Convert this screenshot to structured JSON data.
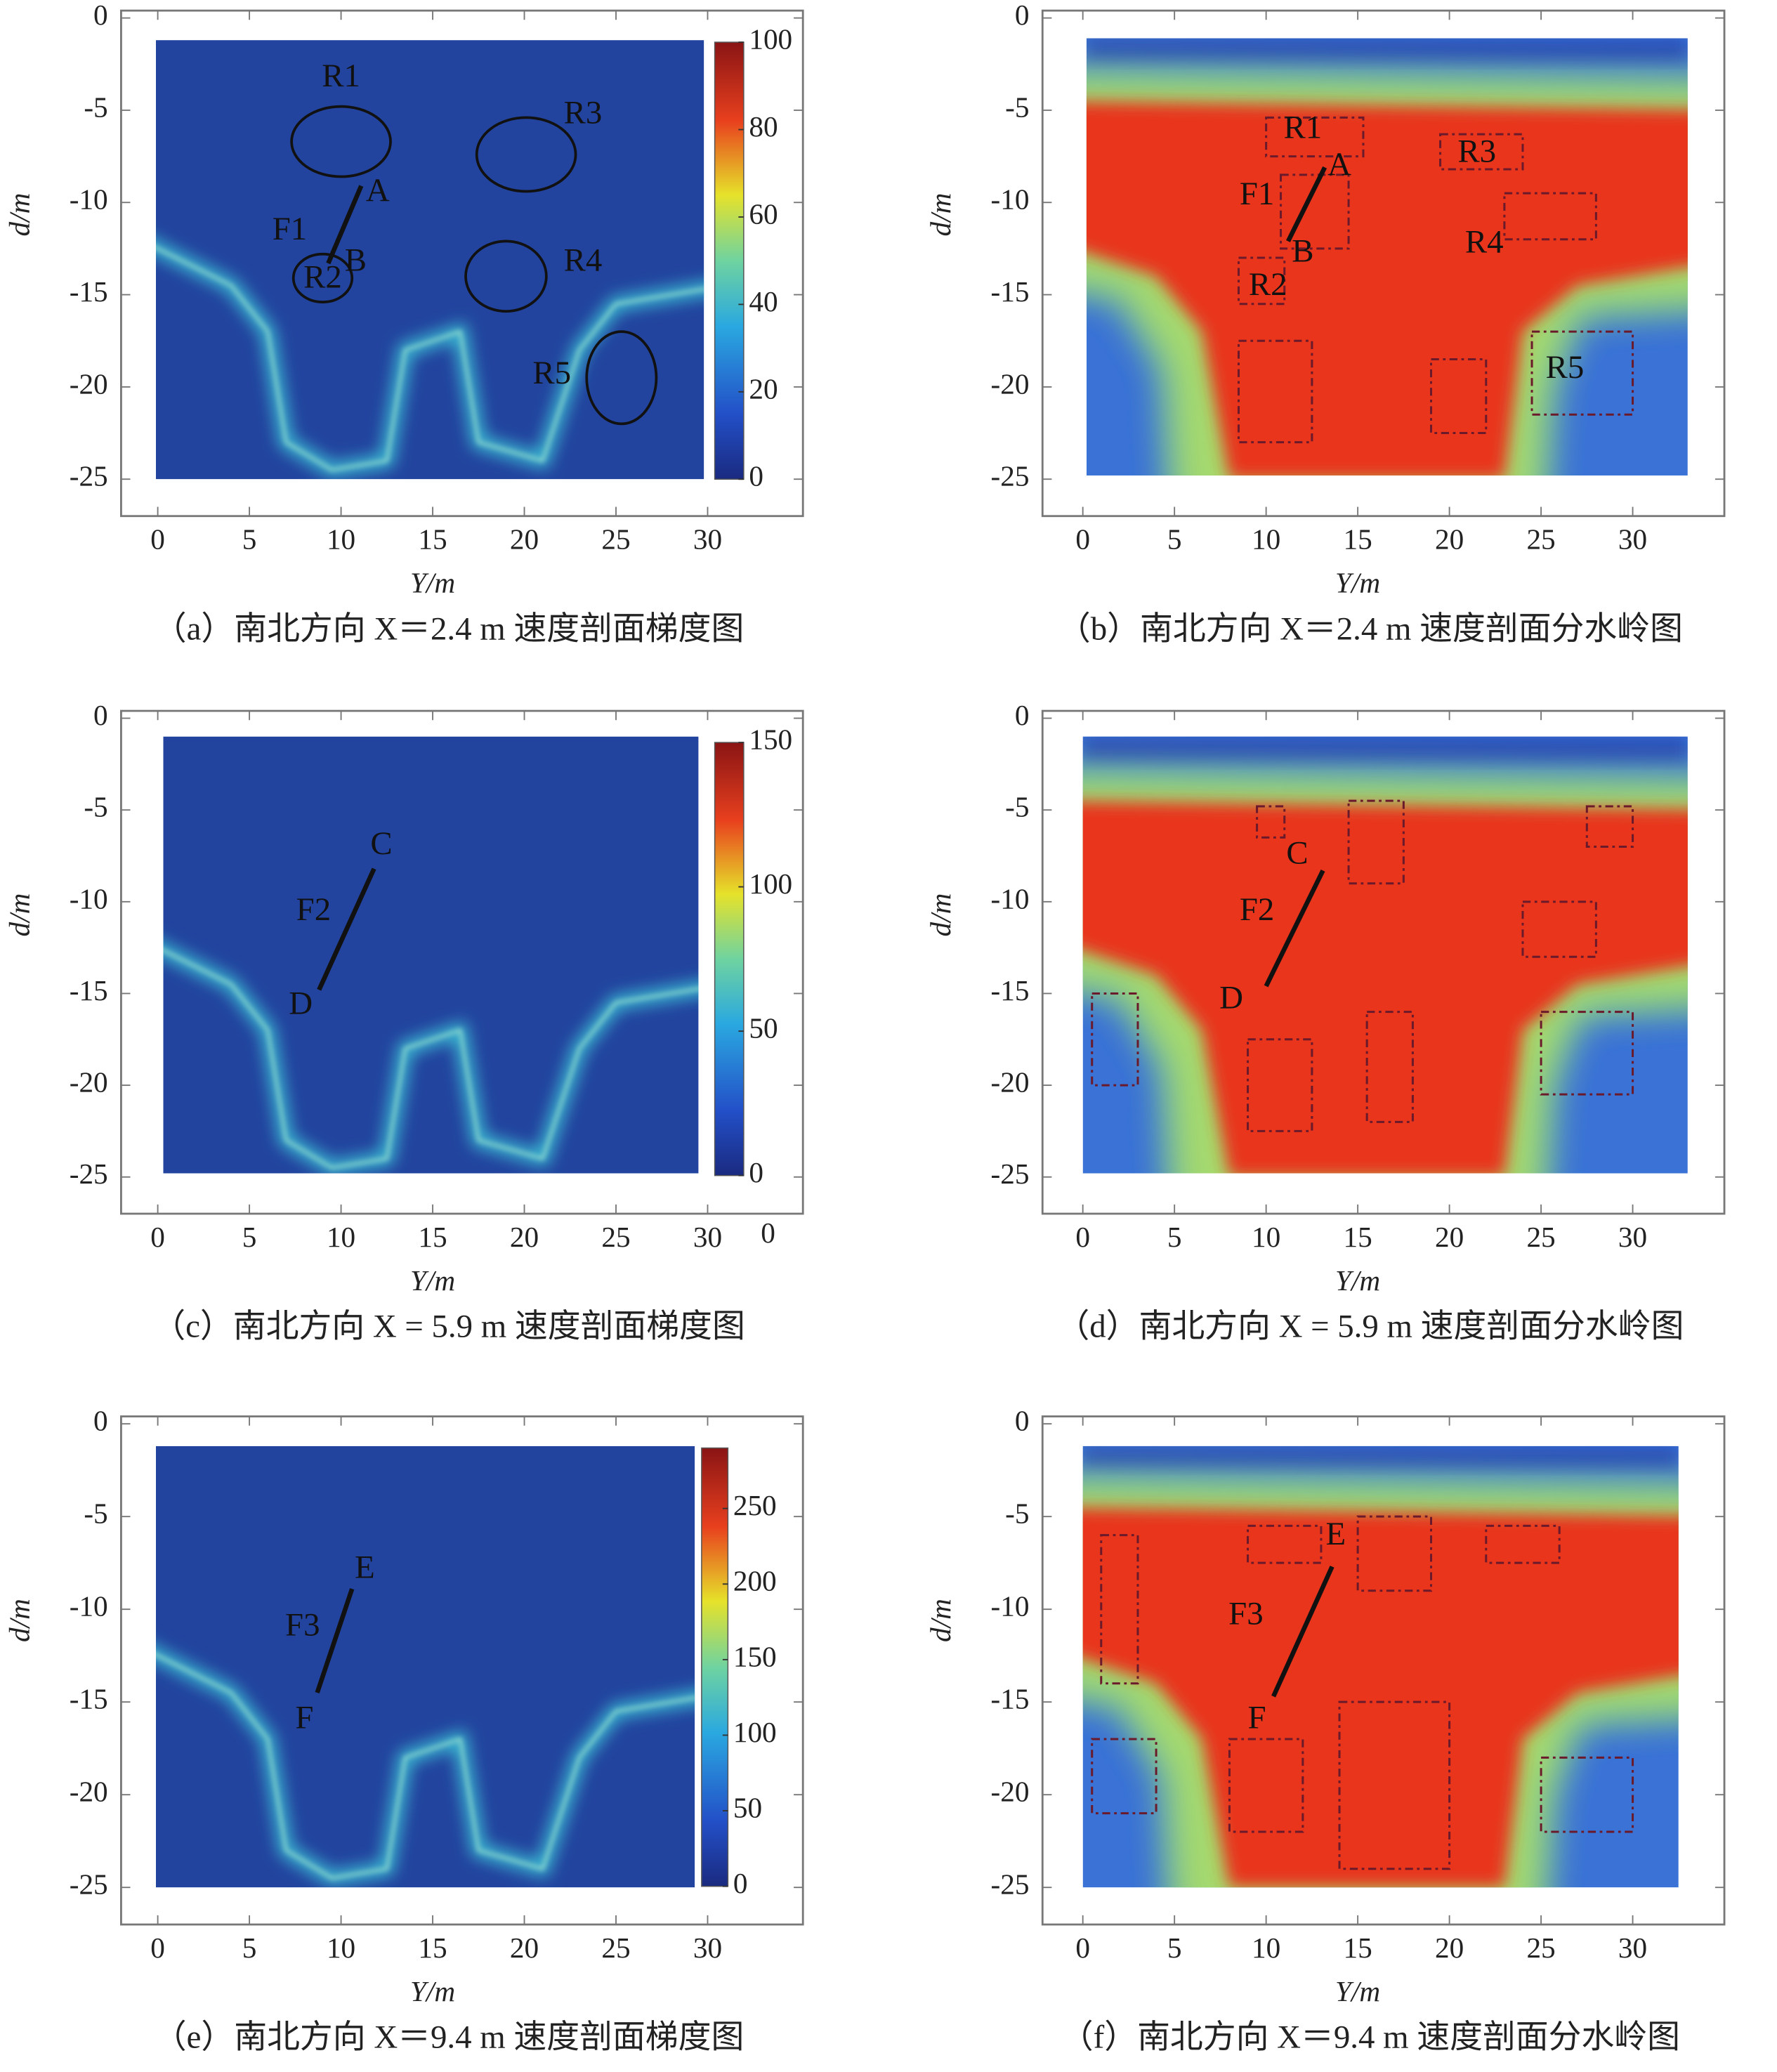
{
  "chart_data": [
    {
      "type": "heatmap",
      "style": "gradient",
      "caption": "（a）南北方向 X＝2.4 m 速度剖面梯度图",
      "xlabel": "Y/m",
      "ylabel": "d/m",
      "xlim": [
        -2,
        35.2
      ],
      "ylim": [
        -27,
        0.4
      ],
      "xticks": [
        0,
        5,
        10,
        15,
        20,
        25,
        30
      ],
      "yticks": [
        0,
        -5,
        -10,
        -15,
        -20,
        -25
      ],
      "clim": [
        0,
        100
      ],
      "cticks": [
        0,
        20,
        40,
        60,
        80,
        100
      ],
      "annotations": [
        "R1",
        "R3",
        "A",
        "F1",
        "B",
        "R2",
        "R4",
        "R5"
      ]
    },
    {
      "type": "heatmap",
      "style": "watershed",
      "caption": "（b）南北方向 X＝2.4 m 速度剖面分水岭图",
      "xlabel": "Y/m",
      "ylabel": "d/m",
      "xlim": [
        -2.2,
        35
      ],
      "ylim": [
        -27,
        0.4
      ],
      "xticks": [
        0,
        5,
        10,
        15,
        20,
        25,
        30
      ],
      "yticks": [
        0,
        -5,
        -10,
        -15,
        -20,
        -25
      ],
      "annotations": [
        "R1",
        "R3",
        "A",
        "F1",
        "B",
        "R4",
        "R2",
        "R5"
      ]
    },
    {
      "type": "heatmap",
      "style": "gradient",
      "caption": "（c）南北方向 X = 5.9 m 速度剖面梯度图",
      "xlabel": "Y/m",
      "ylabel": "d/m",
      "xlim": [
        -2,
        35.2
      ],
      "ylim": [
        -27,
        0.4
      ],
      "xticks": [
        0,
        5,
        10,
        15,
        20,
        25,
        30
      ],
      "yticks": [
        0,
        -5,
        -10,
        -15,
        -20,
        -25
      ],
      "clim": [
        0,
        150
      ],
      "cticks": [
        0,
        50,
        100,
        150
      ],
      "annotations": [
        "C",
        "F2",
        "D",
        "0"
      ]
    },
    {
      "type": "heatmap",
      "style": "watershed",
      "caption": "（d）南北方向 X = 5.9 m 速度剖面分水岭图",
      "xlabel": "Y/m",
      "ylabel": "d/m",
      "xlim": [
        -2.2,
        35
      ],
      "ylim": [
        -27,
        0.4
      ],
      "xticks": [
        0,
        5,
        10,
        15,
        20,
        25,
        30
      ],
      "yticks": [
        0,
        -5,
        -10,
        -15,
        -20,
        -25
      ],
      "annotations": [
        "C",
        "F2",
        "D"
      ]
    },
    {
      "type": "heatmap",
      "style": "gradient",
      "caption": "（e）南北方向 X＝9.4 m 速度剖面梯度图",
      "xlabel": "Y/m",
      "ylabel": "d/m",
      "xlim": [
        -2,
        35.2
      ],
      "ylim": [
        -27,
        0.4
      ],
      "xticks": [
        0,
        5,
        10,
        15,
        20,
        25,
        30
      ],
      "yticks": [
        0,
        -5,
        -10,
        -15,
        -20,
        -25
      ],
      "clim": [
        0,
        290
      ],
      "cticks": [
        0,
        50,
        100,
        150,
        200,
        250
      ],
      "annotations": [
        "E",
        "F3",
        "F"
      ]
    },
    {
      "type": "heatmap",
      "style": "watershed",
      "caption": "（f）南北方向 X＝9.4 m 速度剖面分水岭图",
      "xlabel": "Y/m",
      "ylabel": "d/m",
      "xlim": [
        -2.2,
        35
      ],
      "ylim": [
        -27,
        0.4
      ],
      "xticks": [
        0,
        5,
        10,
        15,
        20,
        25,
        30
      ],
      "yticks": [
        0,
        -5,
        -10,
        -15,
        -20,
        -25
      ],
      "annotations": [
        "E",
        "F3",
        "F"
      ]
    }
  ]
}
